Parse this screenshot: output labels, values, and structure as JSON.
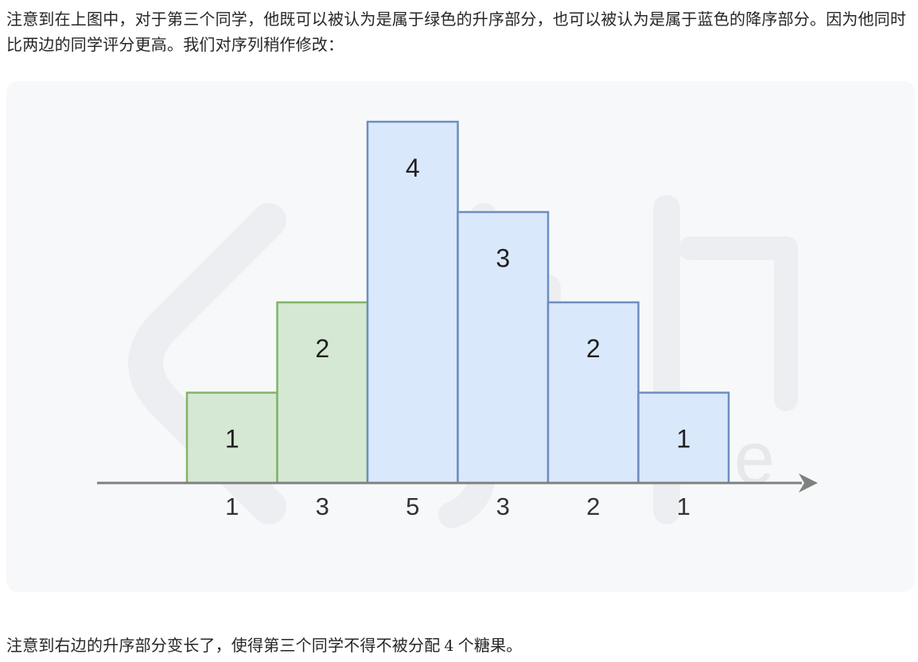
{
  "text": {
    "paragraph_top": "注意到在上图中，对于第三个同学，他既可以被认为是属于绿色的升序部分，也可以被认为是属于蓝色的降序部分。因为他同时比两边的同学评分更高。我们对序列稍作修改：",
    "paragraph_bottom_before": "注意到右边的升序部分变长了，使得第三个同学不得不被分配",
    "paragraph_bottom_number": "4",
    "paragraph_bottom_after": "个糖果。"
  },
  "colors": {
    "green_fill": "#d5e8d4",
    "green_stroke": "#82b366",
    "blue_fill": "#dae8fc",
    "blue_stroke": "#6c8ebf",
    "axis": "#808080"
  },
  "chart_data": {
    "type": "bar",
    "categories": [
      "1",
      "3",
      "5",
      "3",
      "2",
      "1"
    ],
    "values": [
      1,
      2,
      4,
      3,
      2,
      1
    ],
    "bar_labels": [
      "1",
      "2",
      "4",
      "3",
      "2",
      "1"
    ],
    "bar_groups": [
      "green",
      "green",
      "blue",
      "blue",
      "blue",
      "blue"
    ],
    "ylim": [
      0,
      4
    ],
    "grid": false,
    "watermark": "LeetCode"
  }
}
